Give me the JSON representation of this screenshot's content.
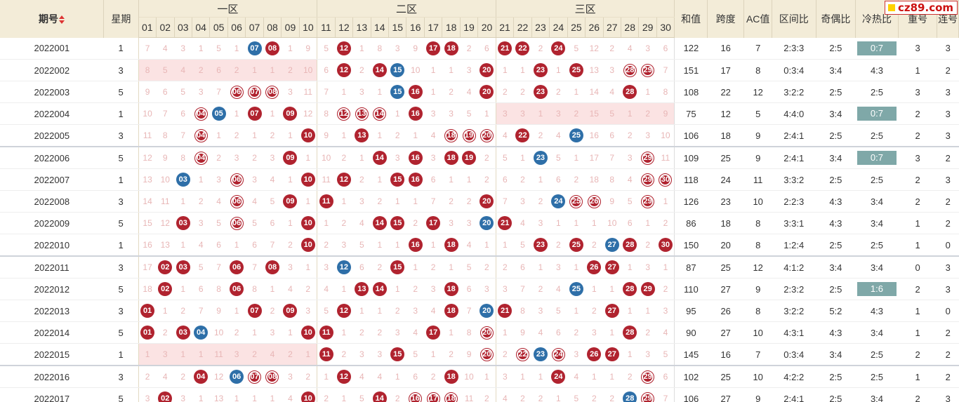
{
  "headers": {
    "period": "期号",
    "week": "星期",
    "zones": [
      "一区",
      "二区",
      "三区"
    ],
    "numbers": [
      "01",
      "02",
      "03",
      "04",
      "05",
      "06",
      "07",
      "08",
      "09",
      "10",
      "11",
      "12",
      "13",
      "14",
      "15",
      "16",
      "17",
      "18",
      "19",
      "20",
      "21",
      "22",
      "23",
      "24",
      "25",
      "26",
      "27",
      "28",
      "29",
      "30"
    ],
    "stats": [
      "和值",
      "跨度",
      "AC值",
      "区间比",
      "奇偶比",
      "冷热比",
      "重号",
      "连号"
    ]
  },
  "logo": {
    "text": "cz89.com"
  },
  "colors": {
    "red_ball": "#b0232f",
    "blue_ball": "#2e6fa8",
    "header_bg": "#f3ecd8",
    "hot_cold_highlight": "#7fa8a8"
  },
  "rows": [
    {
      "period": "2022001",
      "week": "1",
      "cells": [
        "7",
        "4",
        "3",
        "1",
        "5",
        "1",
        "b:07",
        "r:08",
        "1",
        "9",
        "5",
        "r:12",
        "1",
        "8",
        "3",
        "9",
        "r:17",
        "r:18",
        "2",
        "6",
        "r:21",
        "r:22",
        "2",
        "r:24",
        "5",
        "12",
        "2",
        "4",
        "3",
        "6"
      ],
      "stats": [
        "122",
        "16",
        "7",
        "2:3:3",
        "2:5",
        "0:7",
        "3",
        "3"
      ],
      "hl": true
    },
    {
      "period": "2022002",
      "week": "3",
      "cells": [
        "8",
        "5",
        "4",
        "2",
        "6",
        "2",
        "1",
        "1",
        "2",
        "10",
        "6",
        "r:12",
        "2",
        "r:14",
        "b:15",
        "10",
        "1",
        "1",
        "3",
        "r:20",
        "1",
        "1",
        "r:23",
        "1",
        "r:25",
        "13",
        "3",
        "o:28",
        "o:29",
        "7"
      ],
      "stats": [
        "151",
        "17",
        "8",
        "0:3:4",
        "3:4",
        "4:3",
        "1",
        "2"
      ],
      "hl": false,
      "shade1": true
    },
    {
      "period": "2022003",
      "week": "5",
      "cells": [
        "9",
        "6",
        "5",
        "3",
        "7",
        "o:06",
        "o:07",
        "o:08",
        "3",
        "11",
        "7",
        "1",
        "3",
        "1",
        "b:15",
        "r:16",
        "1",
        "2",
        "4",
        "r:20",
        "2",
        "2",
        "r:23",
        "2",
        "1",
        "14",
        "4",
        "r:28",
        "1",
        "8"
      ],
      "stats": [
        "108",
        "22",
        "12",
        "3:2:2",
        "2:5",
        "2:5",
        "3",
        "3"
      ],
      "hl": false
    },
    {
      "period": "2022004",
      "week": "1",
      "cells": [
        "10",
        "7",
        "6",
        "o:04",
        "b:05",
        "1",
        "r:07",
        "1",
        "r:09",
        "12",
        "8",
        "o:12",
        "o:13",
        "o:14",
        "1",
        "r:16",
        "3",
        "3",
        "5",
        "1",
        "3",
        "3",
        "1",
        "3",
        "2",
        "15",
        "5",
        "1",
        "2",
        "9"
      ],
      "stats": [
        "75",
        "12",
        "5",
        "4:4:0",
        "3:4",
        "0:7",
        "2",
        "3"
      ],
      "hl": true,
      "shade3": true
    },
    {
      "period": "2022005",
      "week": "3",
      "cells": [
        "11",
        "8",
        "7",
        "o:04",
        "1",
        "2",
        "1",
        "2",
        "1",
        "r:10",
        "9",
        "1",
        "r:13",
        "1",
        "2",
        "1",
        "4",
        "o:18",
        "o:19",
        "o:20",
        "4",
        "r:22",
        "2",
        "4",
        "b:25",
        "16",
        "6",
        "2",
        "3",
        "10"
      ],
      "stats": [
        "106",
        "18",
        "9",
        "2:4:1",
        "2:5",
        "2:5",
        "2",
        "3"
      ],
      "hl": false
    },
    {
      "period": "2022006",
      "week": "5",
      "cells": [
        "12",
        "9",
        "8",
        "o:04",
        "2",
        "3",
        "2",
        "3",
        "r:09",
        "1",
        "10",
        "2",
        "1",
        "r:14",
        "3",
        "r:16",
        "3",
        "r:18",
        "r:19",
        "2",
        "5",
        "1",
        "b:23",
        "5",
        "1",
        "17",
        "7",
        "3",
        "o:29",
        "11"
      ],
      "stats": [
        "109",
        "25",
        "9",
        "2:4:1",
        "3:4",
        "0:7",
        "3",
        "2"
      ],
      "hl": true,
      "gap": true
    },
    {
      "period": "2022007",
      "week": "1",
      "cells": [
        "13",
        "10",
        "b:03",
        "1",
        "3",
        "o:06",
        "3",
        "4",
        "1",
        "r:10",
        "11",
        "r:12",
        "2",
        "1",
        "r:15",
        "r:16",
        "6",
        "1",
        "1",
        "2",
        "6",
        "2",
        "1",
        "6",
        "2",
        "18",
        "8",
        "4",
        "o:29",
        "o:30"
      ],
      "stats": [
        "118",
        "24",
        "11",
        "3:3:2",
        "2:5",
        "2:5",
        "2",
        "3"
      ],
      "hl": false
    },
    {
      "period": "2022008",
      "week": "3",
      "cells": [
        "14",
        "11",
        "1",
        "2",
        "4",
        "o:06",
        "4",
        "5",
        "r:09",
        "1",
        "r:11",
        "1",
        "3",
        "2",
        "1",
        "1",
        "7",
        "2",
        "2",
        "r:20",
        "7",
        "3",
        "2",
        "b:24",
        "o:25",
        "o:26",
        "9",
        "5",
        "o:29",
        "1"
      ],
      "stats": [
        "126",
        "23",
        "10",
        "2:2:3",
        "4:3",
        "3:4",
        "2",
        "2"
      ],
      "hl": false
    },
    {
      "period": "2022009",
      "week": "5",
      "cells": [
        "15",
        "12",
        "r:03",
        "3",
        "5",
        "o:06",
        "5",
        "6",
        "1",
        "r:10",
        "1",
        "2",
        "4",
        "r:14",
        "r:15",
        "2",
        "r:17",
        "3",
        "3",
        "b:20",
        "r:21",
        "4",
        "3",
        "1",
        "1",
        "1",
        "10",
        "6",
        "1",
        "2"
      ],
      "stats": [
        "86",
        "18",
        "8",
        "3:3:1",
        "4:3",
        "3:4",
        "1",
        "2"
      ],
      "hl": false
    },
    {
      "period": "2022010",
      "week": "1",
      "cells": [
        "16",
        "13",
        "1",
        "4",
        "6",
        "1",
        "6",
        "7",
        "2",
        "r:10",
        "2",
        "3",
        "5",
        "1",
        "1",
        "r:16",
        "1",
        "r:18",
        "4",
        "1",
        "1",
        "5",
        "r:23",
        "2",
        "r:25",
        "2",
        "b:27",
        "r:28",
        "2",
        "r:30"
      ],
      "stats": [
        "150",
        "20",
        "8",
        "1:2:4",
        "2:5",
        "2:5",
        "1",
        "0"
      ],
      "hl": false
    },
    {
      "period": "2022011",
      "week": "3",
      "cells": [
        "17",
        "r:02",
        "r:03",
        "5",
        "7",
        "r:06",
        "7",
        "r:08",
        "3",
        "1",
        "3",
        "b:12",
        "6",
        "2",
        "r:15",
        "1",
        "2",
        "1",
        "5",
        "2",
        "2",
        "6",
        "1",
        "3",
        "1",
        "r:26",
        "r:27",
        "1",
        "3",
        "1"
      ],
      "stats": [
        "87",
        "25",
        "12",
        "4:1:2",
        "3:4",
        "3:4",
        "0",
        "3"
      ],
      "hl": false,
      "gap": true
    },
    {
      "period": "2022012",
      "week": "5",
      "cells": [
        "18",
        "r:02",
        "1",
        "6",
        "8",
        "r:06",
        "8",
        "1",
        "4",
        "2",
        "4",
        "1",
        "r:13",
        "r:14",
        "1",
        "2",
        "3",
        "r:18",
        "6",
        "3",
        "3",
        "7",
        "2",
        "4",
        "b:25",
        "1",
        "1",
        "r:28",
        "r:29",
        "2"
      ],
      "stats": [
        "110",
        "27",
        "9",
        "2:3:2",
        "2:5",
        "1:6",
        "2",
        "3"
      ],
      "hl": true
    },
    {
      "period": "2022013",
      "week": "3",
      "cells": [
        "r:01",
        "1",
        "2",
        "7",
        "9",
        "1",
        "r:07",
        "2",
        "r:09",
        "3",
        "5",
        "r:12",
        "1",
        "1",
        "2",
        "3",
        "4",
        "r:18",
        "7",
        "b:20",
        "r:21",
        "8",
        "3",
        "5",
        "1",
        "2",
        "r:27",
        "1",
        "1",
        "3"
      ],
      "stats": [
        "95",
        "26",
        "8",
        "3:2:2",
        "5:2",
        "4:3",
        "1",
        "0"
      ],
      "hl": false
    },
    {
      "period": "2022014",
      "week": "5",
      "cells": [
        "r:01",
        "2",
        "r:03",
        "b:04",
        "10",
        "2",
        "1",
        "3",
        "1",
        "r:10",
        "r:11",
        "1",
        "2",
        "2",
        "3",
        "4",
        "r:17",
        "1",
        "8",
        "o:20",
        "1",
        "9",
        "4",
        "6",
        "2",
        "3",
        "1",
        "r:28",
        "2",
        "4"
      ],
      "stats": [
        "90",
        "27",
        "10",
        "4:3:1",
        "4:3",
        "3:4",
        "1",
        "2"
      ],
      "hl": false
    },
    {
      "period": "2022015",
      "week": "1",
      "cells": [
        "1",
        "3",
        "1",
        "1",
        "11",
        "3",
        "2",
        "4",
        "2",
        "1",
        "r:11",
        "2",
        "3",
        "3",
        "r:15",
        "5",
        "1",
        "2",
        "9",
        "o:20",
        "2",
        "o:22",
        "b:23",
        "o:24",
        "3",
        "r:26",
        "r:27",
        "1",
        "3",
        "5"
      ],
      "stats": [
        "145",
        "16",
        "7",
        "0:3:4",
        "3:4",
        "2:5",
        "2",
        "2"
      ],
      "hl": false,
      "shade1": true
    },
    {
      "period": "2022016",
      "week": "3",
      "cells": [
        "2",
        "4",
        "2",
        "r:04",
        "12",
        "b:06",
        "o:07",
        "o:08",
        "3",
        "2",
        "1",
        "r:12",
        "4",
        "4",
        "1",
        "6",
        "2",
        "r:18",
        "10",
        "1",
        "3",
        "1",
        "1",
        "r:24",
        "4",
        "1",
        "1",
        "2",
        "o:29",
        "6"
      ],
      "stats": [
        "102",
        "25",
        "10",
        "4:2:2",
        "2:5",
        "2:5",
        "1",
        "2"
      ],
      "hl": false,
      "gap": true
    },
    {
      "period": "2022017",
      "week": "5",
      "cells": [
        "3",
        "r:02",
        "3",
        "1",
        "13",
        "1",
        "1",
        "1",
        "4",
        "r:10",
        "2",
        "1",
        "5",
        "r:14",
        "2",
        "o:16",
        "o:17",
        "o:18",
        "11",
        "2",
        "4",
        "2",
        "2",
        "1",
        "5",
        "2",
        "2",
        "b:28",
        "o:29",
        "7"
      ],
      "stats": [
        "106",
        "27",
        "9",
        "2:4:1",
        "2:5",
        "3:4",
        "2",
        "3"
      ],
      "hl": false
    }
  ]
}
